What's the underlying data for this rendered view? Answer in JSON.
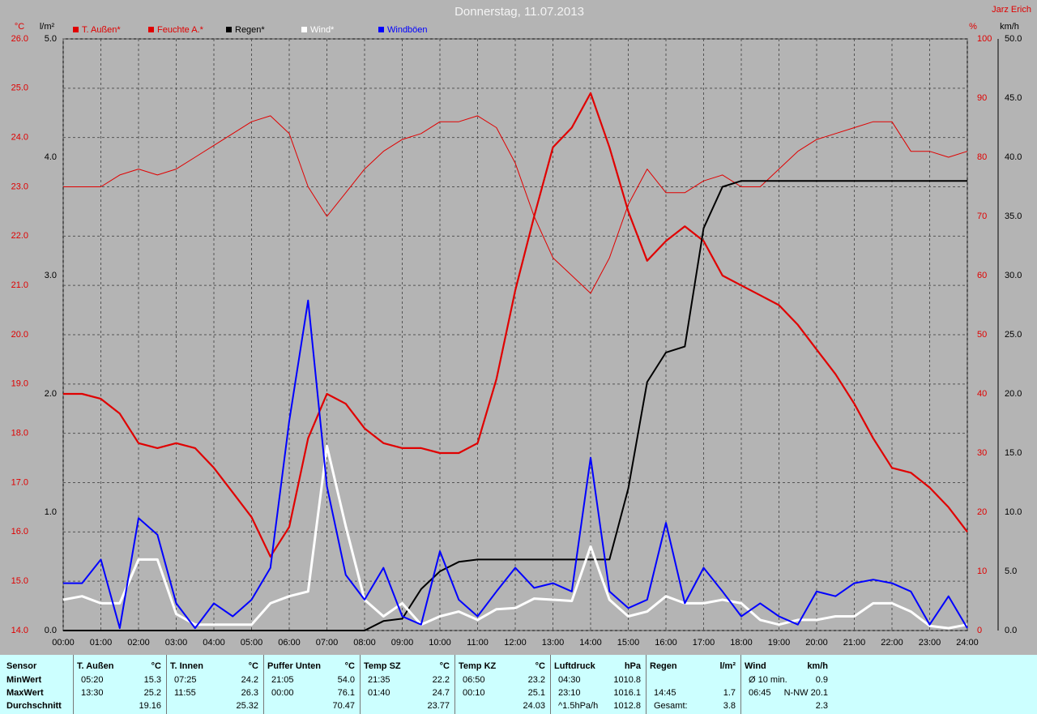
{
  "chart_data": {
    "type": "line",
    "title": "Donnerstag, 11.07.2013",
    "author": "Jarz Erich",
    "xlim": [
      0,
      24
    ],
    "xticks": [
      {
        "value": 0,
        "label": "00:00"
      },
      {
        "value": 1,
        "label": "01:00"
      },
      {
        "value": 2,
        "label": "02:00"
      },
      {
        "value": 3,
        "label": "03:00"
      },
      {
        "value": 4,
        "label": "04:00"
      },
      {
        "value": 5,
        "label": "05:00"
      },
      {
        "value": 6,
        "label": "06:00"
      },
      {
        "value": 7,
        "label": "07:00"
      },
      {
        "value": 8,
        "label": "08:00"
      },
      {
        "value": 9,
        "label": "09:00"
      },
      {
        "value": 10,
        "label": "10:00"
      },
      {
        "value": 11,
        "label": "11:00"
      },
      {
        "value": 12,
        "label": "12:00"
      },
      {
        "value": 13,
        "label": "13:00"
      },
      {
        "value": 14,
        "label": "14:00"
      },
      {
        "value": 15,
        "label": "15:00"
      },
      {
        "value": 16,
        "label": "16:00"
      },
      {
        "value": 17,
        "label": "17:00"
      },
      {
        "value": 18,
        "label": "18:00"
      },
      {
        "value": 19,
        "label": "19:00"
      },
      {
        "value": 20,
        "label": "20:00"
      },
      {
        "value": 21,
        "label": "21:00"
      },
      {
        "value": 22,
        "label": "22:00"
      },
      {
        "value": 23,
        "label": "23:00"
      },
      {
        "value": 24,
        "label": "24:00"
      }
    ],
    "grid": true,
    "axes": [
      {
        "unit": "°C",
        "color": "#e00000",
        "lim": [
          14,
          26
        ],
        "ticks": [
          {
            "value": 26,
            "label": "26.0"
          },
          {
            "value": 25,
            "label": "25.0"
          },
          {
            "value": 24,
            "label": "24.0"
          },
          {
            "value": 23,
            "label": "23.0"
          },
          {
            "value": 22,
            "label": "22.0"
          },
          {
            "value": 21,
            "label": "21.0"
          },
          {
            "value": 20,
            "label": "20.0"
          },
          {
            "value": 19,
            "label": "19.0"
          },
          {
            "value": 18,
            "label": "18.0"
          },
          {
            "value": 17,
            "label": "17.0"
          },
          {
            "value": 16,
            "label": "16.0"
          },
          {
            "value": 15,
            "label": "15.0"
          },
          {
            "value": 14,
            "label": "14.0"
          }
        ]
      },
      {
        "unit": "l/m²",
        "color": "#000000",
        "lim": [
          0,
          5
        ],
        "ticks": [
          {
            "value": 5,
            "label": "5.0"
          },
          {
            "value": 4,
            "label": "4.0"
          },
          {
            "value": 3,
            "label": "3.0"
          },
          {
            "value": 2,
            "label": "2.0"
          },
          {
            "value": 1,
            "label": "1.0"
          },
          {
            "value": 0,
            "label": "0.0"
          }
        ]
      },
      {
        "unit": "%",
        "color": "#e00000",
        "lim": [
          0,
          100
        ],
        "ticks": [
          100,
          90,
          80,
          70,
          60,
          50,
          40,
          30,
          20,
          10,
          0
        ]
      },
      {
        "unit": "km/h",
        "color": "#000000",
        "lim": [
          0,
          50
        ],
        "ticks": [
          {
            "value": 50,
            "label": "50.0"
          },
          {
            "value": 45,
            "label": "45.0"
          },
          {
            "value": 40,
            "label": "40.0"
          },
          {
            "value": 35,
            "label": "35.0"
          },
          {
            "value": 30,
            "label": "30.0"
          },
          {
            "value": 25,
            "label": "25.0"
          },
          {
            "value": 20,
            "label": "20.0"
          },
          {
            "value": 15,
            "label": "15.0"
          },
          {
            "value": 10,
            "label": "10.0"
          },
          {
            "value": 5,
            "label": "5.0"
          },
          {
            "value": 0,
            "label": "0.0"
          }
        ]
      }
    ],
    "x": [
      0,
      0.5,
      1,
      1.5,
      2,
      2.5,
      3,
      3.5,
      4,
      4.5,
      5,
      5.5,
      6,
      6.5,
      7,
      7.5,
      8,
      8.5,
      9,
      9.5,
      10,
      10.5,
      11,
      11.5,
      12,
      12.5,
      13,
      13.5,
      14,
      14.5,
      15,
      15.5,
      16,
      16.5,
      17,
      17.5,
      18,
      18.5,
      19,
      19.5,
      20,
      20.5,
      21,
      21.5,
      22,
      22.5,
      23,
      23.5,
      24
    ],
    "series": [
      {
        "name": "T. Außen*",
        "color": "#e00000",
        "axis": 0,
        "values": [
          18.8,
          18.8,
          18.7,
          18.4,
          17.8,
          17.7,
          17.8,
          17.7,
          17.3,
          16.8,
          16.3,
          15.5,
          16.1,
          17.9,
          18.8,
          18.6,
          18.1,
          17.8,
          17.7,
          17.7,
          17.6,
          17.6,
          17.8,
          19.1,
          20.9,
          22.4,
          23.8,
          24.2,
          24.9,
          23.8,
          22.5,
          21.5,
          21.9,
          22.2,
          21.9,
          21.2,
          21.0,
          20.8,
          20.6,
          20.2,
          19.7,
          19.2,
          18.6,
          17.9,
          17.3,
          17.2,
          16.9,
          16.5,
          16.0
        ]
      },
      {
        "name": "Feuchte A.*",
        "color": "#e00000",
        "axis": 2,
        "values": [
          75,
          75,
          75,
          77,
          78,
          77,
          78,
          80,
          82,
          84,
          86,
          87,
          84,
          75,
          70,
          74,
          78,
          81,
          83,
          84,
          86,
          86,
          87,
          85,
          79,
          70,
          63,
          60,
          57,
          63,
          72,
          78,
          74,
          74,
          76,
          77,
          75,
          75,
          78,
          81,
          83,
          84,
          85,
          86,
          86,
          81,
          81,
          80,
          81
        ]
      },
      {
        "name": "Regen*",
        "color": "#000000",
        "axis": 1,
        "values": [
          0,
          0,
          0,
          0,
          0,
          0,
          0,
          0,
          0,
          0,
          0,
          0,
          0,
          0,
          0,
          0,
          0,
          0.08,
          0.1,
          0.35,
          0.5,
          0.58,
          0.6,
          0.6,
          0.6,
          0.6,
          0.6,
          0.6,
          0.6,
          0.6,
          1.2,
          2.1,
          2.35,
          2.4,
          3.4,
          3.75,
          3.8,
          3.8,
          3.8,
          3.8,
          3.8,
          3.8,
          3.8,
          3.8,
          3.8,
          3.8,
          3.8,
          3.8,
          3.8
        ]
      },
      {
        "name": "Wind*",
        "color": "#ffffff",
        "axis": 3,
        "values": [
          2.6,
          2.9,
          2.3,
          2.3,
          6,
          6,
          1.4,
          0.5,
          0.5,
          0.5,
          0.5,
          2.3,
          2.9,
          3.3,
          15.6,
          8.8,
          2.6,
          1.2,
          2.3,
          0.5,
          1.2,
          1.6,
          0.9,
          1.8,
          1.9,
          2.7,
          2.6,
          2.5,
          7.1,
          2.6,
          1.2,
          1.6,
          2.9,
          2.3,
          2.3,
          2.6,
          2.3,
          0.9,
          0.5,
          0.9,
          0.9,
          1.2,
          1.2,
          2.3,
          2.3,
          1.6,
          0.4,
          0.2,
          0.5
        ]
      },
      {
        "name": "Windböen",
        "color": "#0000ff",
        "axis": 3,
        "values": [
          4,
          4,
          6,
          0.2,
          9.5,
          8.1,
          2.3,
          0.2,
          2.3,
          1.2,
          2.6,
          5.3,
          17.7,
          27.9,
          12.2,
          4.7,
          2.6,
          5.3,
          1.2,
          0.5,
          6.7,
          2.6,
          1.2,
          3.3,
          5.3,
          3.6,
          4,
          3.3,
          14.6,
          3.3,
          1.9,
          2.6,
          9.1,
          2.3,
          5.3,
          3.3,
          1.2,
          2.3,
          1.2,
          0.5,
          3.3,
          2.9,
          4,
          4.3,
          4,
          3.3,
          0.5,
          2.9,
          0.2
        ]
      }
    ]
  },
  "table": {
    "header": "Sensor",
    "row_labels": [
      "MinWert",
      "MaxWert",
      "Durchschnitt"
    ],
    "groups": [
      {
        "title": "T. Außen",
        "unit": "°C",
        "rows": [
          [
            "05:20",
            "15.3"
          ],
          [
            "13:30",
            "25.2"
          ],
          [
            null,
            "19.16"
          ]
        ]
      },
      {
        "title": "T. Innen",
        "unit": "°C",
        "rows": [
          [
            "07:25",
            "24.2"
          ],
          [
            "11:55",
            "26.3"
          ],
          [
            null,
            "25.32"
          ]
        ]
      },
      {
        "title": "Puffer Unten",
        "unit": "°C",
        "rows": [
          [
            "21:05",
            "54.0"
          ],
          [
            "00:00",
            "76.1"
          ],
          [
            null,
            "70.47"
          ]
        ]
      },
      {
        "title": "Temp SZ",
        "unit": "°C",
        "rows": [
          [
            "21:35",
            "22.2"
          ],
          [
            "01:40",
            "24.7"
          ],
          [
            null,
            "23.77"
          ]
        ]
      },
      {
        "title": "Temp KZ",
        "unit": "°C",
        "rows": [
          [
            "06:50",
            "23.2"
          ],
          [
            "00:10",
            "25.1"
          ],
          [
            null,
            "24.03"
          ]
        ]
      },
      {
        "title": "Luftdruck",
        "unit": "hPa",
        "rows": [
          [
            "04:30",
            "1010.8"
          ],
          [
            "23:10",
            "1016.1"
          ],
          [
            "^1.5hPa/h",
            "1012.8"
          ]
        ]
      },
      {
        "title": "Regen",
        "unit": "l/m²",
        "rows": [
          [
            null,
            null
          ],
          [
            "14:45",
            "1.7"
          ],
          [
            "Gesamt:",
            "3.8"
          ]
        ]
      },
      {
        "title": "Wind",
        "unit": "km/h",
        "rows": [
          [
            "Ø 10 min.",
            "0.9"
          ],
          [
            "06:45",
            "N-NW 20.1"
          ],
          [
            null,
            "2.3"
          ]
        ]
      }
    ]
  }
}
